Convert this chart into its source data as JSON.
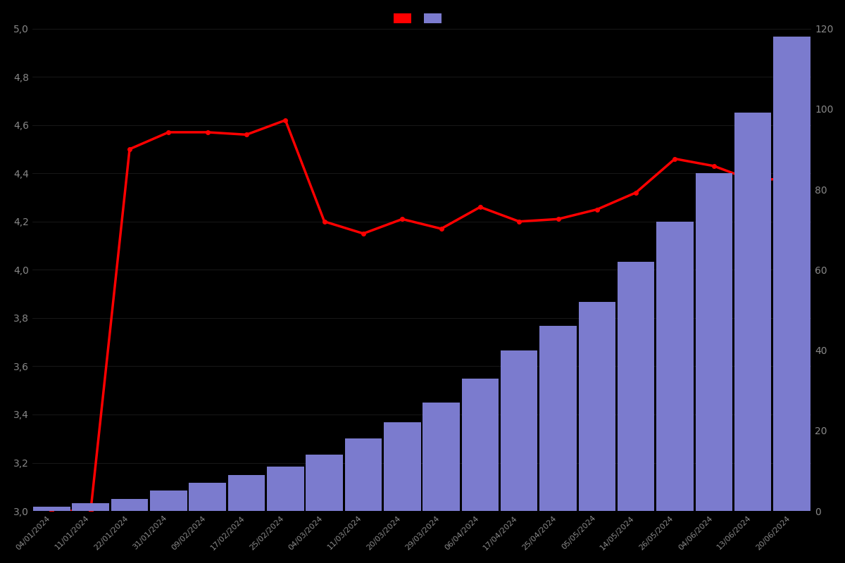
{
  "dates": [
    "04/01/2024",
    "11/01/2024",
    "22/01/2024",
    "31/01/2024",
    "09/02/2024",
    "17/02/2024",
    "25/02/2024",
    "04/03/2024",
    "11/03/2024",
    "20/03/2024",
    "29/03/2024",
    "06/04/2024",
    "17/04/2024",
    "25/04/2024",
    "05/05/2024",
    "14/05/2024",
    "26/05/2024",
    "04/06/2024",
    "13/06/2024",
    "20/06/2024"
  ],
  "ratings": [
    3.0,
    3.0,
    4.5,
    4.57,
    4.57,
    4.56,
    4.62,
    4.2,
    4.15,
    4.21,
    4.17,
    4.26,
    4.2,
    4.21,
    4.25,
    4.32,
    4.46,
    4.43,
    4.37,
    4.38
  ],
  "counts": [
    1,
    2,
    3,
    5,
    7,
    9,
    11,
    14,
    18,
    22,
    27,
    33,
    40,
    46,
    52,
    62,
    72,
    84,
    99,
    118
  ],
  "bar_color": "#7B7BCE",
  "line_color": "#FF0000",
  "background_color": "#000000",
  "text_color": "#888888",
  "ylim_left": [
    3.0,
    5.0
  ],
  "ylim_right": [
    0,
    120
  ],
  "yticks_left": [
    3.0,
    3.2,
    3.4,
    3.6,
    3.8,
    4.0,
    4.2,
    4.4,
    4.6,
    4.8,
    5.0
  ],
  "yticks_right": [
    0,
    20,
    40,
    60,
    80,
    100,
    120
  ],
  "figsize": [
    12.0,
    8.0
  ],
  "dpi": 100
}
